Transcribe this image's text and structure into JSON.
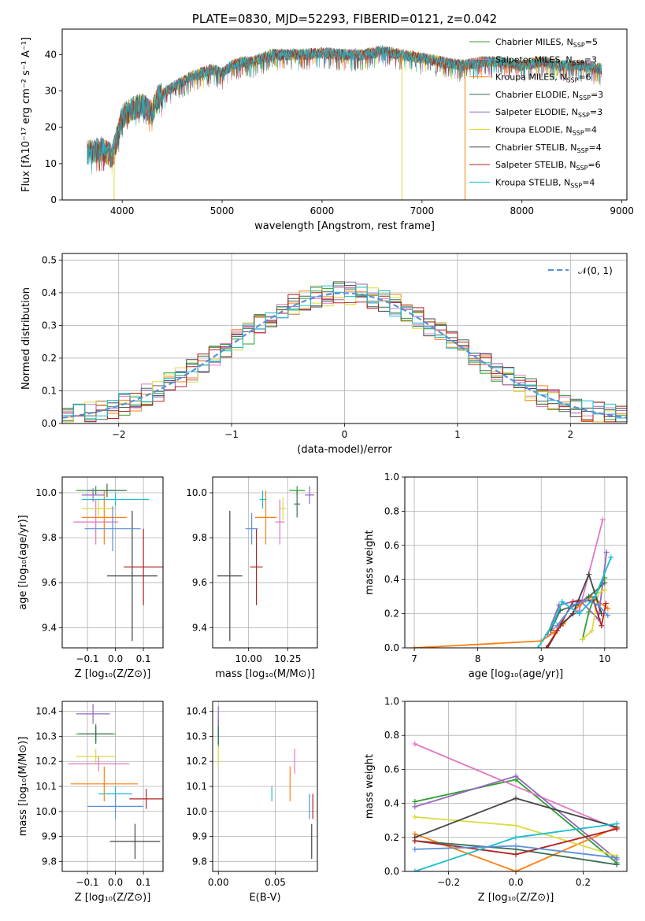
{
  "chart_data": [
    {
      "id": "spectrum",
      "type": "line",
      "title": "PLATE=0830, MJD=52293, FIBERID=0121, z=0.042",
      "xlabel": "wavelength [Angstrom, rest frame]",
      "ylabel": "Flux [fλ10⁻¹⁷ erg cm⁻² s⁻¹ A⁻¹]",
      "xlim": [
        3400,
        9050
      ],
      "ylim": [
        0,
        47
      ],
      "xticks": [
        "4000",
        "5000",
        "6000",
        "7000",
        "8000",
        "9000"
      ],
      "yticks": [
        "0",
        "10",
        "20",
        "30",
        "40"
      ],
      "grid": false,
      "legend": "upper right",
      "continuum": {
        "x": [
          3650,
          3800,
          3900,
          3950,
          4000,
          4100,
          4200,
          4300,
          4350,
          4500,
          4700,
          4900,
          5000,
          5100,
          5200,
          5300,
          5400,
          5500,
          5600,
          5800,
          6000,
          6200,
          6400,
          6600,
          6800,
          7000,
          7200,
          7400,
          7600,
          7800,
          8000,
          8200,
          8400,
          8600,
          8800
        ],
        "y": [
          13,
          14,
          12,
          17,
          23,
          25,
          26,
          24,
          28,
          31,
          34,
          36,
          35,
          37,
          38,
          38,
          39,
          40,
          40,
          40,
          40.5,
          40,
          40,
          41,
          40,
          39,
          38,
          37,
          38,
          38,
          37,
          38,
          37,
          37,
          36
        ]
      },
      "series": [
        {
          "name": "Chabrier MILES, N_SSP=5",
          "color": "#2ca02c"
        },
        {
          "name": "Salpeter MILES, N_SSP=3",
          "color": "#e377c2"
        },
        {
          "name": "Kroupa MILES, N_SSP=6",
          "color": "#ff7f0e"
        },
        {
          "name": "Chabrier ELODIE, N_SSP=3",
          "color": "#3a6e50"
        },
        {
          "name": "Salpeter ELODIE, N_SSP=3",
          "color": "#9467bd"
        },
        {
          "name": "Kroupa ELODIE, N_SSP=4",
          "color": "#dbdb3d"
        },
        {
          "name": "Chabrier STELIB, N_SSP=4",
          "color": "#444444"
        },
        {
          "name": "Salpeter STELIB, N_SSP=6",
          "color": "#b22222"
        },
        {
          "name": "Kroupa STELIB, N_SSP=4",
          "color": "#17becf"
        }
      ],
      "dropouts": [
        {
          "x": 3920,
          "color": "#dbdb3d"
        },
        {
          "x": 6800,
          "color": "#dbdb3d"
        },
        {
          "x": 7430,
          "color": "#ff7f0e"
        }
      ]
    },
    {
      "id": "residuals",
      "type": "line",
      "xlabel": "(data-model)/error",
      "ylabel": "Normed distribution",
      "xlim": [
        -2.5,
        2.5
      ],
      "ylim": [
        0,
        0.52
      ],
      "xticks": [
        -2,
        -1,
        0,
        1,
        2
      ],
      "yticks": [
        "0.0",
        "0.1",
        "0.2",
        "0.3",
        "0.4",
        "0.5"
      ],
      "grid": true,
      "legend": "upper right",
      "normal_label": "𝒩(0, 1)",
      "bin_width": 0.1,
      "series_colors": [
        "#2ca02c",
        "#e377c2",
        "#ff7f0e",
        "#3a6e50",
        "#9467bd",
        "#dbdb3d",
        "#444444",
        "#b22222",
        "#17becf"
      ]
    },
    {
      "id": "age-vs-Z",
      "type": "scatter",
      "xlabel": "Z [log₁₀(Z/Z⊙)]",
      "ylabel": "age  [log₁₀(age/yr)]",
      "xlim": [
        -0.19,
        0.17
      ],
      "ylim": [
        9.31,
        10.07
      ],
      "xticks": [
        "-0.1",
        "0.0",
        "0.1"
      ],
      "yticks": [
        "9.4",
        "9.6",
        "9.8",
        "10.0"
      ],
      "grid": true,
      "points": [
        {
          "x": -0.07,
          "y": 10.01,
          "xerr": 0.07,
          "yerr": 0.02,
          "color": "#2ca02c"
        },
        {
          "x": -0.07,
          "y": 9.87,
          "xerr": 0.08,
          "yerr": 0.1,
          "color": "#e377c2"
        },
        {
          "x": -0.04,
          "y": 9.89,
          "xerr": 0.08,
          "yerr": 0.12,
          "color": "#ff7f0e"
        },
        {
          "x": -0.03,
          "y": 10.01,
          "xerr": 0.07,
          "yerr": 0.03,
          "color": "#3a6e50"
        },
        {
          "x": -0.08,
          "y": 9.99,
          "xerr": 0.04,
          "yerr": 0.03,
          "color": "#9467bd"
        },
        {
          "x": -0.06,
          "y": 9.93,
          "xerr": 0.06,
          "yerr": 0.04,
          "color": "#dbdb3d"
        },
        {
          "x": 0.06,
          "y": 9.63,
          "xerr": 0.09,
          "yerr": 0.29,
          "color": "#444444"
        },
        {
          "x": 0.1,
          "y": 9.67,
          "xerr": 0.07,
          "yerr": 0.17,
          "color": "#b22222"
        },
        {
          "x": 0.0,
          "y": 9.97,
          "xerr": 0.12,
          "yerr": 0.03,
          "color": "#17becf"
        },
        {
          "x": -0.01,
          "y": 9.84,
          "xerr": 0.1,
          "yerr": 0.1,
          "color": "#5b8fd9"
        }
      ]
    },
    {
      "id": "age-vs-mass",
      "type": "scatter",
      "xlabel": "mass [log₁₀(M/M⊙)]",
      "ylabel": "",
      "xlim": [
        9.77,
        10.44
      ],
      "ylim": [
        9.31,
        10.07
      ],
      "xticks": [
        "10.00",
        "10.25"
      ],
      "yticks": [
        "9.4",
        "9.6",
        "9.8",
        "10.0"
      ],
      "grid": true,
      "points": [
        {
          "x": 10.31,
          "y": 10.01,
          "xerr": 0.05,
          "yerr": 0.02,
          "color": "#2ca02c"
        },
        {
          "x": 10.2,
          "y": 9.87,
          "xerr": 0.03,
          "yerr": 0.1,
          "color": "#e377c2"
        },
        {
          "x": 10.11,
          "y": 9.89,
          "xerr": 0.07,
          "yerr": 0.12,
          "color": "#ff7f0e"
        },
        {
          "x": 10.31,
          "y": 9.95,
          "xerr": 0.02,
          "yerr": 0.06,
          "color": "#3a6e50"
        },
        {
          "x": 10.39,
          "y": 9.99,
          "xerr": 0.03,
          "yerr": 0.04,
          "color": "#9467bd"
        },
        {
          "x": 10.22,
          "y": 9.93,
          "xerr": 0.02,
          "yerr": 0.05,
          "color": "#dbdb3d"
        },
        {
          "x": 9.88,
          "y": 9.63,
          "xerr": 0.08,
          "yerr": 0.29,
          "color": "#444444"
        },
        {
          "x": 10.05,
          "y": 9.67,
          "xerr": 0.04,
          "yerr": 0.17,
          "color": "#b22222"
        },
        {
          "x": 10.09,
          "y": 9.97,
          "xerr": 0.02,
          "yerr": 0.04,
          "color": "#17becf"
        },
        {
          "x": 10.02,
          "y": 9.84,
          "xerr": 0.04,
          "yerr": 0.07,
          "color": "#5b8fd9"
        }
      ]
    },
    {
      "id": "mass-weight-vs-age",
      "type": "line",
      "xlabel": "age  [log₁₀(age/yr)]",
      "ylabel": "mass weight",
      "xlim": [
        6.85,
        10.35
      ],
      "ylim": [
        0,
        1
      ],
      "xticks": [
        "7",
        "8",
        "9",
        "10"
      ],
      "yticks": [
        "0.0",
        "0.2",
        "0.4",
        "0.6",
        "0.8",
        "1.0"
      ],
      "grid": true,
      "series": [
        {
          "color": "#2ca02c",
          "x": [
            9.65,
            9.75,
            9.82,
            10.0
          ],
          "y": [
            0.05,
            0.21,
            0.28,
            0.41
          ]
        },
        {
          "color": "#e377c2",
          "x": [
            9.15,
            9.6,
            9.97
          ],
          "y": [
            0.1,
            0.22,
            0.75
          ]
        },
        {
          "color": "#ff7f0e",
          "x": [
            7.0,
            9.0,
            9.2,
            9.35,
            9.6,
            9.8,
            10.05
          ],
          "y": [
            0.0,
            0.04,
            0.09,
            0.14,
            0.25,
            0.3,
            0.23
          ]
        },
        {
          "color": "#3a6e50",
          "x": [
            9.15,
            9.3,
            9.55,
            9.75,
            10.0
          ],
          "y": [
            0.1,
            0.22,
            0.25,
            0.3,
            0.38
          ]
        },
        {
          "color": "#9467bd",
          "x": [
            9.1,
            9.28,
            9.6,
            9.9,
            10.03
          ],
          "y": [
            0.08,
            0.25,
            0.28,
            0.17,
            0.56
          ]
        },
        {
          "color": "#dbdb3d",
          "x": [
            9.65,
            9.8,
            9.9,
            10.0
          ],
          "y": [
            0.05,
            0.1,
            0.32,
            0.34
          ]
        },
        {
          "color": "#444444",
          "x": [
            9.1,
            9.3,
            9.5,
            9.75,
            9.95
          ],
          "y": [
            0.0,
            0.13,
            0.2,
            0.43,
            0.2
          ]
        },
        {
          "color": "#b22222",
          "x": [
            9.08,
            9.25,
            9.5,
            9.82,
            9.95,
            10.02
          ],
          "y": [
            0.0,
            0.1,
            0.27,
            0.28,
            0.13,
            0.26
          ]
        },
        {
          "color": "#17becf",
          "x": [
            8.95,
            9.2,
            9.33,
            9.6,
            9.85,
            10.1
          ],
          "y": [
            0.0,
            0.15,
            0.27,
            0.2,
            0.3,
            0.53
          ]
        },
        {
          "color": "#5b8fd9",
          "x": [
            9.25,
            9.5,
            9.7,
            9.9,
            10.05
          ],
          "y": [
            0.13,
            0.25,
            0.28,
            0.25,
            0.19
          ]
        }
      ]
    },
    {
      "id": "mass-vs-Z",
      "type": "scatter",
      "xlabel": "Z [log₁₀(Z/Z⊙)]",
      "ylabel": "mass [log₁₀(M/M⊙)]",
      "xlim": [
        -0.19,
        0.17
      ],
      "ylim": [
        9.76,
        10.44
      ],
      "xticks": [
        "-0.1",
        "0.0",
        "0.1"
      ],
      "yticks": [
        "9.8",
        "9.9",
        "10.0",
        "10.1",
        "10.2",
        "10.3",
        "10.4"
      ],
      "grid": true,
      "points": [
        {
          "x": -0.07,
          "y": 10.31,
          "xerr": 0.07,
          "yerr": 0.04,
          "color": "#2ca02c"
        },
        {
          "x": -0.06,
          "y": 10.19,
          "xerr": 0.11,
          "yerr": 0.03,
          "color": "#e377c2"
        },
        {
          "x": -0.04,
          "y": 10.11,
          "xerr": 0.12,
          "yerr": 0.07,
          "color": "#ff7f0e"
        },
        {
          "x": -0.07,
          "y": 10.31,
          "xerr": 0.06,
          "yerr": 0.03,
          "color": "#3a6e50"
        },
        {
          "x": -0.08,
          "y": 10.39,
          "xerr": 0.06,
          "yerr": 0.04,
          "color": "#9467bd"
        },
        {
          "x": -0.07,
          "y": 10.22,
          "xerr": 0.07,
          "yerr": 0.03,
          "color": "#dbdb3d"
        },
        {
          "x": 0.07,
          "y": 9.88,
          "xerr": 0.09,
          "yerr": 0.07,
          "color": "#444444"
        },
        {
          "x": 0.11,
          "y": 10.05,
          "xerr": 0.06,
          "yerr": 0.04,
          "color": "#b22222"
        },
        {
          "x": 0.0,
          "y": 10.07,
          "xerr": 0.06,
          "yerr": 0.03,
          "color": "#17becf"
        },
        {
          "x": 0.0,
          "y": 10.02,
          "xerr": 0.1,
          "yerr": 0.05,
          "color": "#5b8fd9"
        }
      ]
    },
    {
      "id": "mass-vs-EBV",
      "type": "scatter",
      "xlabel": "E(B-V)",
      "ylabel": "",
      "xlim": [
        -0.005,
        0.087
      ],
      "ylim": [
        9.76,
        10.44
      ],
      "xticks": [
        "0.00",
        "0.05"
      ],
      "yticks": [
        "9.8",
        "9.9",
        "10.0",
        "10.1",
        "10.2",
        "10.3",
        "10.4"
      ],
      "grid": true,
      "points": [
        {
          "x": 0.0,
          "y": 10.3,
          "xerr": 0.0,
          "yerr": 0.04,
          "color": "#2ca02c"
        },
        {
          "x": 0.067,
          "y": 10.2,
          "xerr": 0.0,
          "yerr": 0.05,
          "color": "#e377c2"
        },
        {
          "x": 0.063,
          "y": 10.11,
          "xerr": 0.0,
          "yerr": 0.07,
          "color": "#ff7f0e"
        },
        {
          "x": 0.0,
          "y": 10.32,
          "xerr": 0.0,
          "yerr": 0.05,
          "color": "#3a6e50"
        },
        {
          "x": 0.0,
          "y": 10.38,
          "xerr": 0.0,
          "yerr": 0.04,
          "color": "#9467bd"
        },
        {
          "x": 0.0,
          "y": 10.22,
          "xerr": 0.0,
          "yerr": 0.04,
          "color": "#dbdb3d"
        },
        {
          "x": 0.082,
          "y": 9.88,
          "xerr": 0.0,
          "yerr": 0.07,
          "color": "#444444"
        },
        {
          "x": 0.083,
          "y": 10.02,
          "xerr": 0.0,
          "yerr": 0.05,
          "color": "#b22222"
        },
        {
          "x": 0.047,
          "y": 10.07,
          "xerr": 0.0,
          "yerr": 0.03,
          "color": "#17becf"
        },
        {
          "x": 0.08,
          "y": 10.02,
          "xerr": 0.0,
          "yerr": 0.05,
          "color": "#5b8fd9"
        }
      ]
    },
    {
      "id": "mass-weight-vs-Z",
      "type": "line",
      "xlabel": "Z [log₁₀(Z/Z⊙)]",
      "ylabel": "mass weight",
      "xlim": [
        -0.33,
        0.33
      ],
      "ylim": [
        0,
        1
      ],
      "xticks": [
        "−0.2",
        "0.0",
        "0.2"
      ],
      "yticks": [
        "0.0",
        "0.2",
        "0.4",
        "0.6",
        "0.8",
        "1.0"
      ],
      "grid": true,
      "series": [
        {
          "color": "#2ca02c",
          "x": [
            -0.3,
            0.0,
            0.3
          ],
          "y": [
            0.41,
            0.54,
            0.05
          ]
        },
        {
          "color": "#e377c2",
          "x": [
            -0.3,
            0.3
          ],
          "y": [
            0.75,
            0.25
          ]
        },
        {
          "color": "#ff7f0e",
          "x": [
            -0.3,
            0.0,
            0.3
          ],
          "y": [
            0.22,
            0.0,
            0.26
          ]
        },
        {
          "color": "#3a6e50",
          "x": [
            -0.3,
            0.0,
            0.3
          ],
          "y": [
            0.18,
            0.13,
            0.04
          ]
        },
        {
          "color": "#9467bd",
          "x": [
            -0.3,
            0.0,
            0.3
          ],
          "y": [
            0.38,
            0.56,
            0.07
          ]
        },
        {
          "color": "#dbdb3d",
          "x": [
            -0.3,
            0.0,
            0.3
          ],
          "y": [
            0.32,
            0.27,
            0.09
          ]
        },
        {
          "color": "#444444",
          "x": [
            -0.3,
            0.0,
            0.3
          ],
          "y": [
            0.2,
            0.43,
            0.26
          ]
        },
        {
          "color": "#b22222",
          "x": [
            -0.3,
            0.0,
            0.3
          ],
          "y": [
            0.18,
            0.1,
            0.25
          ]
        },
        {
          "color": "#17becf",
          "x": [
            -0.3,
            0.0,
            0.3
          ],
          "y": [
            0.0,
            0.2,
            0.28
          ]
        },
        {
          "color": "#5b8fd9",
          "x": [
            -0.3,
            0.0,
            0.3
          ],
          "y": [
            0.13,
            0.15,
            0.08
          ]
        }
      ]
    }
  ]
}
